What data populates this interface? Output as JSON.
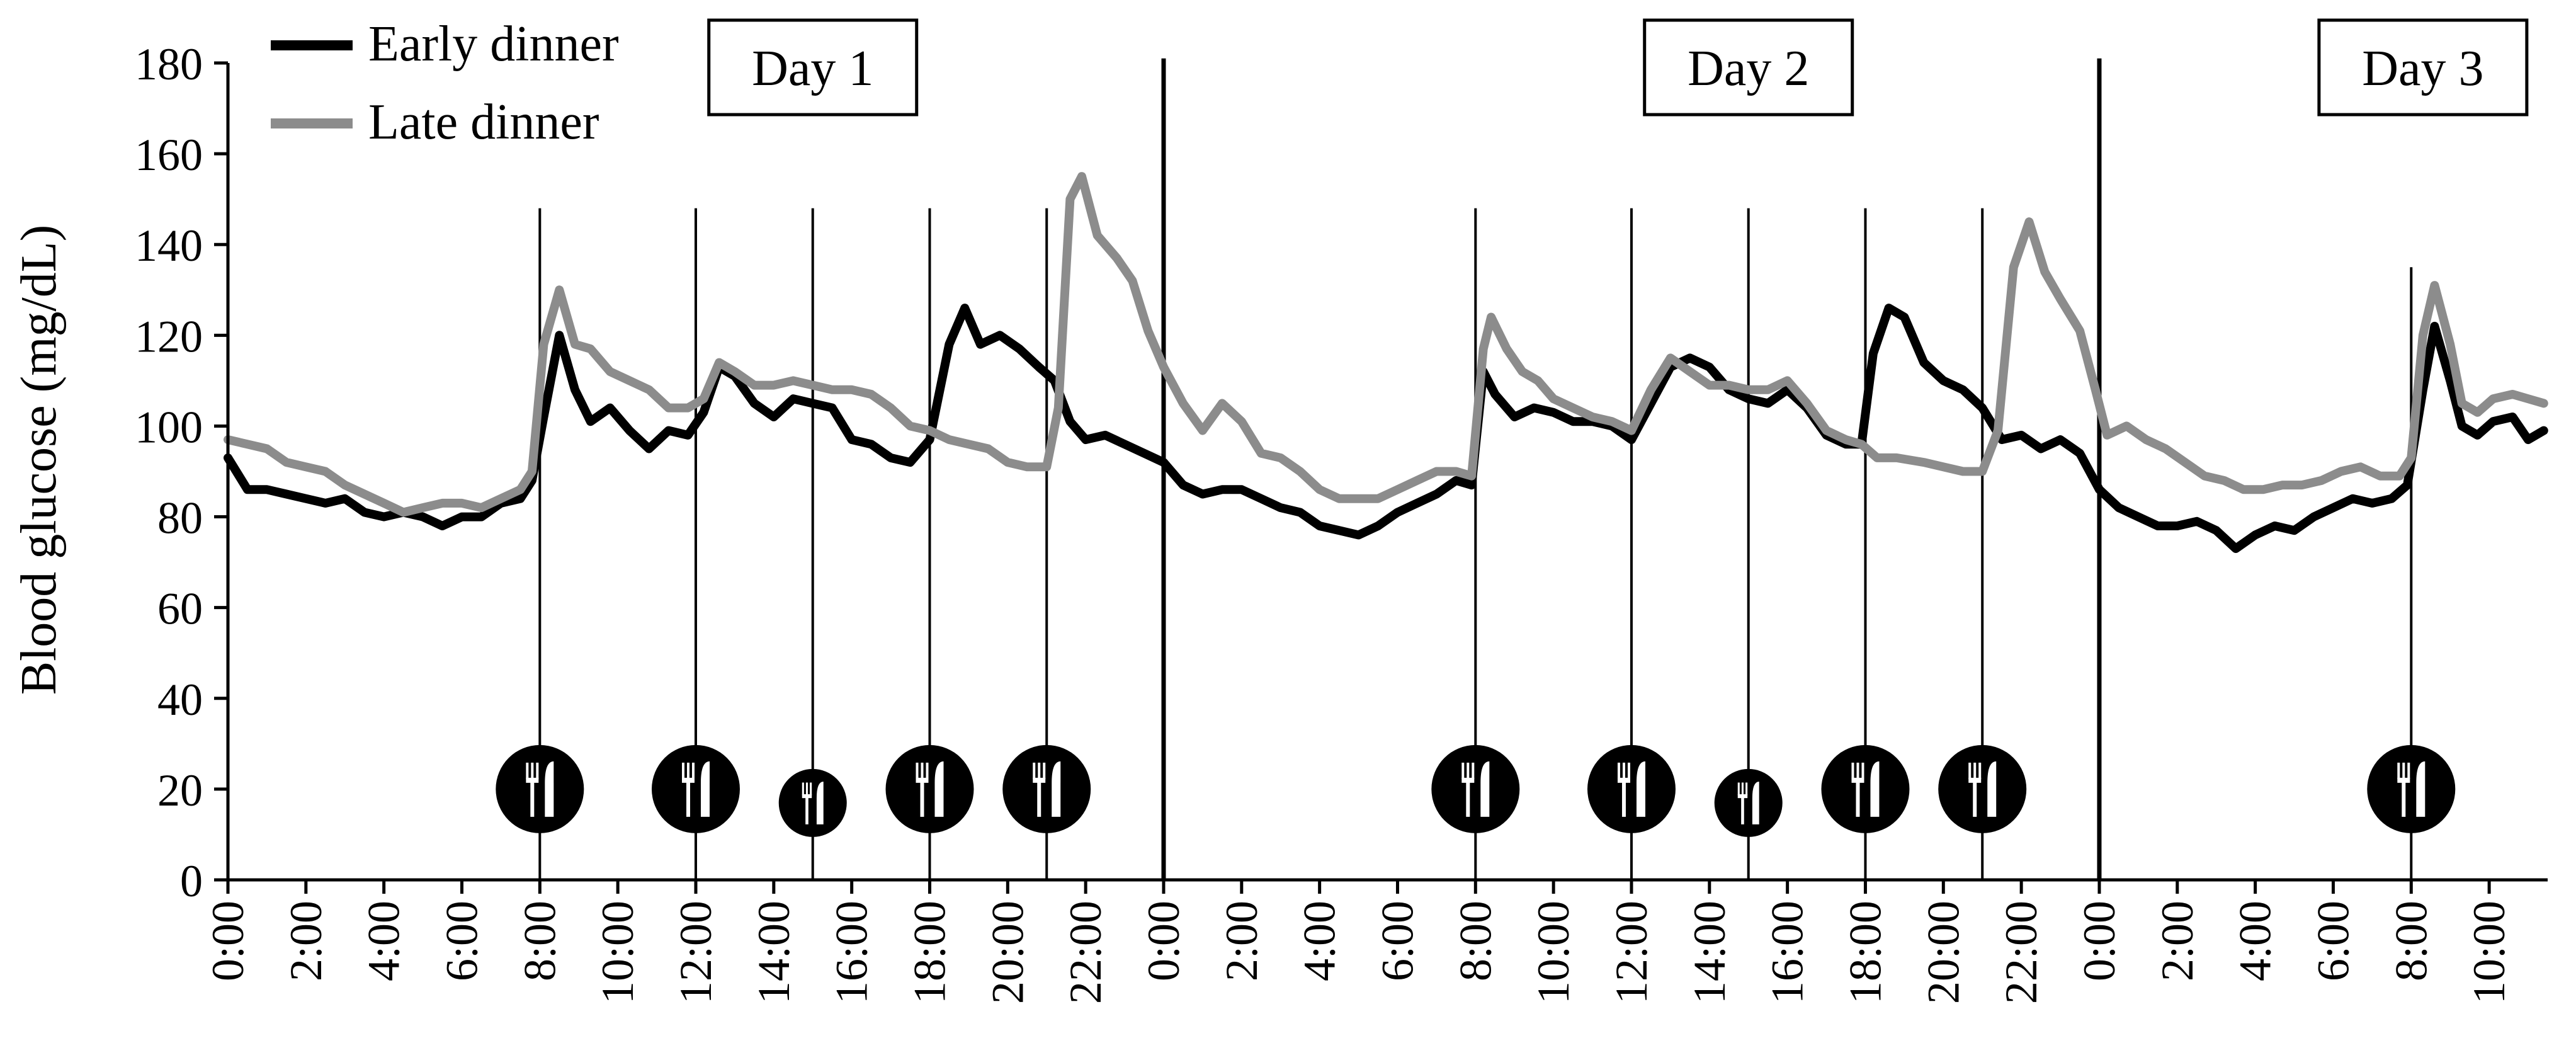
{
  "chart_data": {
    "type": "line",
    "ylabel": "Blood glucose (mg/dL)",
    "xlabel": "",
    "ylim": [
      0,
      180
    ],
    "yticks": [
      0,
      20,
      40,
      60,
      80,
      100,
      120,
      140,
      160,
      180
    ],
    "x_unit": "hours since Day 1 0:00",
    "xlim": [
      0,
      59.5
    ],
    "xtick_labels": [
      "0:00",
      "2:00",
      "4:00",
      "6:00",
      "8:00",
      "10:00",
      "12:00",
      "14:00",
      "16:00",
      "18:00",
      "20:00",
      "22:00",
      "0:00",
      "2:00",
      "4:00",
      "6:00",
      "8:00",
      "10:00",
      "12:00",
      "14:00",
      "16:00",
      "18:00",
      "20:00",
      "22:00",
      "0:00",
      "2:00",
      "4:00",
      "6:00",
      "8:00",
      "10:00"
    ],
    "grid": false,
    "legend_position": "top-left",
    "colors": {
      "early": "#000000",
      "late": "#8c8c8c"
    },
    "day_labels": [
      {
        "label": "Day 1",
        "center": 15.0
      },
      {
        "label": "Day 2",
        "center": 39.0
      },
      {
        "label": "Day 3",
        "center": 56.3
      }
    ],
    "day_separators": [
      24,
      48
    ],
    "meal_times": [
      8,
      12,
      15,
      18,
      21,
      32,
      36,
      39,
      42,
      45,
      56
    ],
    "meal_icon_small": [
      15,
      39
    ],
    "series": [
      {
        "name": "Early dinner",
        "color": "#000000",
        "points": [
          [
            0,
            93
          ],
          [
            0.5,
            86
          ],
          [
            1,
            86
          ],
          [
            1.5,
            85
          ],
          [
            2,
            84
          ],
          [
            2.5,
            83
          ],
          [
            3,
            84
          ],
          [
            3.5,
            81
          ],
          [
            4,
            80
          ],
          [
            4.5,
            81
          ],
          [
            5,
            80
          ],
          [
            5.5,
            78
          ],
          [
            6,
            80
          ],
          [
            6.5,
            80
          ],
          [
            7,
            83
          ],
          [
            7.5,
            84
          ],
          [
            7.8,
            88
          ],
          [
            8.1,
            102
          ],
          [
            8.5,
            120
          ],
          [
            8.9,
            108
          ],
          [
            9.3,
            101
          ],
          [
            9.8,
            104
          ],
          [
            10.3,
            99
          ],
          [
            10.8,
            95
          ],
          [
            11.3,
            99
          ],
          [
            11.8,
            98
          ],
          [
            12.2,
            103
          ],
          [
            12.6,
            113
          ],
          [
            13,
            111
          ],
          [
            13.5,
            105
          ],
          [
            14,
            102
          ],
          [
            14.5,
            106
          ],
          [
            15,
            105
          ],
          [
            15.5,
            104
          ],
          [
            16,
            97
          ],
          [
            16.5,
            96
          ],
          [
            17,
            93
          ],
          [
            17.5,
            92
          ],
          [
            18,
            97
          ],
          [
            18.5,
            118
          ],
          [
            18.9,
            126
          ],
          [
            19.3,
            118
          ],
          [
            19.8,
            120
          ],
          [
            20.3,
            117
          ],
          [
            20.8,
            113
          ],
          [
            21.2,
            110
          ],
          [
            21.6,
            101
          ],
          [
            22,
            97
          ],
          [
            22.5,
            98
          ],
          [
            23,
            96
          ],
          [
            23.5,
            94
          ],
          [
            24,
            92
          ],
          [
            24.5,
            87
          ],
          [
            25,
            85
          ],
          [
            25.5,
            86
          ],
          [
            26,
            86
          ],
          [
            26.5,
            84
          ],
          [
            27,
            82
          ],
          [
            27.5,
            81
          ],
          [
            28,
            78
          ],
          [
            28.5,
            77
          ],
          [
            29,
            76
          ],
          [
            29.5,
            78
          ],
          [
            30,
            81
          ],
          [
            30.5,
            83
          ],
          [
            31,
            85
          ],
          [
            31.5,
            88
          ],
          [
            31.9,
            87
          ],
          [
            32.2,
            112
          ],
          [
            32.5,
            107
          ],
          [
            33,
            102
          ],
          [
            33.5,
            104
          ],
          [
            34,
            103
          ],
          [
            34.5,
            101
          ],
          [
            35,
            101
          ],
          [
            35.5,
            100
          ],
          [
            36,
            97
          ],
          [
            36.5,
            105
          ],
          [
            37,
            113
          ],
          [
            37.5,
            115
          ],
          [
            38,
            113
          ],
          [
            38.5,
            108
          ],
          [
            39,
            106
          ],
          [
            39.5,
            105
          ],
          [
            40,
            108
          ],
          [
            40.5,
            104
          ],
          [
            41,
            98
          ],
          [
            41.5,
            96
          ],
          [
            41.9,
            96
          ],
          [
            42.2,
            116
          ],
          [
            42.6,
            126
          ],
          [
            43,
            124
          ],
          [
            43.5,
            114
          ],
          [
            44,
            110
          ],
          [
            44.5,
            108
          ],
          [
            45,
            104
          ],
          [
            45.5,
            97
          ],
          [
            46,
            98
          ],
          [
            46.5,
            95
          ],
          [
            47,
            97
          ],
          [
            47.5,
            94
          ],
          [
            48,
            86
          ],
          [
            48.5,
            82
          ],
          [
            49,
            80
          ],
          [
            49.5,
            78
          ],
          [
            50,
            78
          ],
          [
            50.5,
            79
          ],
          [
            51,
            77
          ],
          [
            51.5,
            73
          ],
          [
            52,
            76
          ],
          [
            52.5,
            78
          ],
          [
            53,
            77
          ],
          [
            53.5,
            80
          ],
          [
            54,
            82
          ],
          [
            54.5,
            84
          ],
          [
            55,
            83
          ],
          [
            55.5,
            84
          ],
          [
            55.9,
            87
          ],
          [
            56.3,
            108
          ],
          [
            56.6,
            122
          ],
          [
            57,
            110
          ],
          [
            57.3,
            100
          ],
          [
            57.7,
            98
          ],
          [
            58.1,
            101
          ],
          [
            58.6,
            102
          ],
          [
            59.0,
            97
          ],
          [
            59.4,
            99
          ]
        ]
      },
      {
        "name": "Late dinner",
        "color": "#8c8c8c",
        "points": [
          [
            0,
            97
          ],
          [
            0.5,
            96
          ],
          [
            1,
            95
          ],
          [
            1.5,
            92
          ],
          [
            2,
            91
          ],
          [
            2.5,
            90
          ],
          [
            3,
            87
          ],
          [
            3.5,
            85
          ],
          [
            4,
            83
          ],
          [
            4.5,
            81
          ],
          [
            5,
            82
          ],
          [
            5.5,
            83
          ],
          [
            6,
            83
          ],
          [
            6.5,
            82
          ],
          [
            7,
            84
          ],
          [
            7.5,
            86
          ],
          [
            7.8,
            90
          ],
          [
            8.1,
            118
          ],
          [
            8.5,
            130
          ],
          [
            8.9,
            118
          ],
          [
            9.3,
            117
          ],
          [
            9.8,
            112
          ],
          [
            10.3,
            110
          ],
          [
            10.8,
            108
          ],
          [
            11.3,
            104
          ],
          [
            11.8,
            104
          ],
          [
            12.2,
            106
          ],
          [
            12.6,
            114
          ],
          [
            13,
            112
          ],
          [
            13.5,
            109
          ],
          [
            14,
            109
          ],
          [
            14.5,
            110
          ],
          [
            15,
            109
          ],
          [
            15.5,
            108
          ],
          [
            16,
            108
          ],
          [
            16.5,
            107
          ],
          [
            17,
            104
          ],
          [
            17.5,
            100
          ],
          [
            18,
            99
          ],
          [
            18.5,
            97
          ],
          [
            19,
            96
          ],
          [
            19.5,
            95
          ],
          [
            20,
            92
          ],
          [
            20.5,
            91
          ],
          [
            21,
            91
          ],
          [
            21.3,
            104
          ],
          [
            21.6,
            150
          ],
          [
            21.9,
            155
          ],
          [
            22.3,
            142
          ],
          [
            22.8,
            137
          ],
          [
            23.2,
            132
          ],
          [
            23.6,
            121
          ],
          [
            24,
            113
          ],
          [
            24.5,
            105
          ],
          [
            25,
            99
          ],
          [
            25.5,
            105
          ],
          [
            26,
            101
          ],
          [
            26.5,
            94
          ],
          [
            27,
            93
          ],
          [
            27.5,
            90
          ],
          [
            28,
            86
          ],
          [
            28.5,
            84
          ],
          [
            29,
            84
          ],
          [
            29.5,
            84
          ],
          [
            30,
            86
          ],
          [
            30.5,
            88
          ],
          [
            31,
            90
          ],
          [
            31.5,
            90
          ],
          [
            31.9,
            89
          ],
          [
            32.2,
            117
          ],
          [
            32.4,
            124
          ],
          [
            32.8,
            117
          ],
          [
            33.2,
            112
          ],
          [
            33.6,
            110
          ],
          [
            34,
            106
          ],
          [
            34.5,
            104
          ],
          [
            35,
            102
          ],
          [
            35.5,
            101
          ],
          [
            36,
            99
          ],
          [
            36.5,
            108
          ],
          [
            37,
            115
          ],
          [
            37.5,
            112
          ],
          [
            38,
            109
          ],
          [
            38.5,
            109
          ],
          [
            39,
            108
          ],
          [
            39.5,
            108
          ],
          [
            40,
            110
          ],
          [
            40.5,
            105
          ],
          [
            41,
            99
          ],
          [
            41.5,
            97
          ],
          [
            41.9,
            96
          ],
          [
            42.3,
            93
          ],
          [
            42.8,
            93
          ],
          [
            43.5,
            92
          ],
          [
            44,
            91
          ],
          [
            44.5,
            90
          ],
          [
            45,
            90
          ],
          [
            45.4,
            99
          ],
          [
            45.8,
            135
          ],
          [
            46.2,
            145
          ],
          [
            46.6,
            134
          ],
          [
            47,
            128
          ],
          [
            47.5,
            121
          ],
          [
            47.9,
            108
          ],
          [
            48.2,
            98
          ],
          [
            48.7,
            100
          ],
          [
            49.2,
            97
          ],
          [
            49.7,
            95
          ],
          [
            50.2,
            92
          ],
          [
            50.7,
            89
          ],
          [
            51.2,
            88
          ],
          [
            51.7,
            86
          ],
          [
            52.2,
            86
          ],
          [
            52.7,
            87
          ],
          [
            53.2,
            87
          ],
          [
            53.7,
            88
          ],
          [
            54.2,
            90
          ],
          [
            54.7,
            91
          ],
          [
            55.2,
            89
          ],
          [
            55.7,
            89
          ],
          [
            56,
            93
          ],
          [
            56.3,
            120
          ],
          [
            56.6,
            131
          ],
          [
            57,
            118
          ],
          [
            57.3,
            105
          ],
          [
            57.7,
            103
          ],
          [
            58.1,
            106
          ],
          [
            58.6,
            107
          ],
          [
            59.0,
            106
          ],
          [
            59.4,
            105
          ]
        ]
      }
    ]
  }
}
